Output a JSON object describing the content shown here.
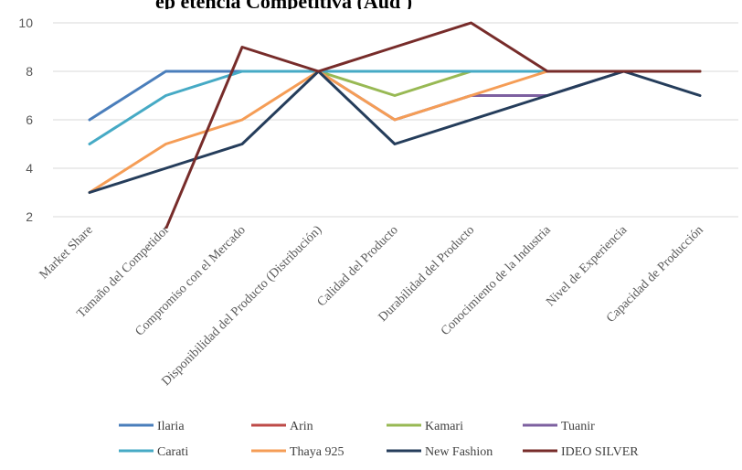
{
  "chart_data": {
    "type": "line",
    "title": "p… … … p… (…)",
    "title_visible_fragments": [
      "ep",
      "etencia Competitiva (Aud",
      ")"
    ],
    "categories": [
      "Market Share",
      "Tamaño del Competidor",
      "Compromiso con el Mercado",
      "Disponibilidad del Producto (Distribución)",
      "Calidad del Producto",
      "Durabilidad del Producto",
      "Conocimiento de la Industria",
      "Nivel de Experiencia",
      "Capacidad de Producción"
    ],
    "y_ticks": [
      "2",
      "4",
      "6",
      "8",
      "10"
    ],
    "ylim": [
      2,
      10
    ],
    "grid": true,
    "legend_position": "bottom",
    "series": [
      {
        "name": "Ilaria",
        "color": "#4A7EBB",
        "values": [
          6,
          8,
          8,
          8,
          8,
          8,
          8,
          8,
          8
        ]
      },
      {
        "name": "Arin",
        "color": "#BE4B48",
        "values": [
          null,
          null,
          null,
          8,
          8,
          8,
          8,
          8,
          8
        ]
      },
      {
        "name": "Kamari",
        "color": "#98B954",
        "values": [
          null,
          null,
          null,
          8,
          7,
          8,
          8,
          8,
          8
        ]
      },
      {
        "name": "Tuanir",
        "color": "#7D60A0",
        "values": [
          null,
          null,
          null,
          8,
          6,
          7,
          7,
          8,
          8
        ]
      },
      {
        "name": "Carati",
        "color": "#46AAC5",
        "values": [
          5,
          7,
          8,
          8,
          8,
          8,
          8,
          8,
          8
        ]
      },
      {
        "name": "Thaya 925",
        "color": "#F59D56",
        "values": [
          3,
          5,
          6,
          8,
          6,
          7,
          8,
          8,
          8
        ]
      },
      {
        "name": "New Fashion",
        "color": "#253D5B",
        "values": [
          3,
          4,
          5,
          8,
          5,
          6,
          7,
          8,
          7
        ]
      },
      {
        "name": "IDEO SILVER",
        "color": "#772C2A",
        "values": [
          null,
          1.5,
          9,
          8,
          9,
          10,
          8,
          8,
          8
        ]
      }
    ]
  }
}
